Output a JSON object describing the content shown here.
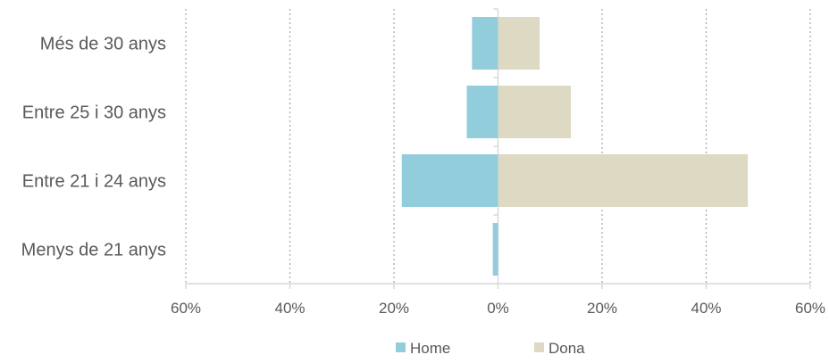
{
  "chart_data": {
    "type": "bar",
    "orientation": "horizontal",
    "title": "",
    "xlabel": "",
    "ylabel": "",
    "categories": [
      "Més de 30 anys",
      "Entre 25 i 30 anys",
      "Entre 21 i 24 anys",
      "Menys de 21 anys"
    ],
    "series": [
      {
        "name": "Home",
        "color": "#92CDDC",
        "values": [
          -5,
          -6,
          -18.5,
          -1
        ]
      },
      {
        "name": "Dona",
        "color": "#DDD9C3",
        "values": [
          8,
          14,
          48,
          0
        ]
      }
    ],
    "xlim": [
      -60,
      60
    ],
    "x_ticks": [
      -60,
      -40,
      -20,
      0,
      20,
      40,
      60
    ],
    "x_tick_labels": [
      "60%",
      "40%",
      "20%",
      "0%",
      "20%",
      "40%",
      "60%"
    ],
    "grid": "vertical-dotted",
    "legend_position": "bottom",
    "legend": [
      "Home",
      "Dona"
    ]
  }
}
